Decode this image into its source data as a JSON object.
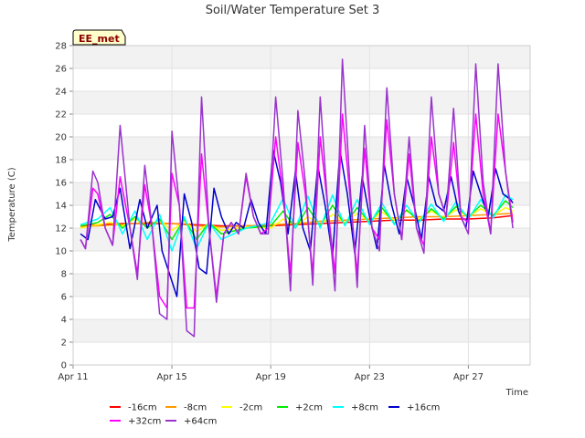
{
  "chart_data": {
    "type": "line",
    "title": "Soil/Water Temperature Set 3",
    "xlabel": "Time",
    "ylabel": "Temperature (C)",
    "badge": "EE_met",
    "xlim": [
      0,
      18.5
    ],
    "ylim": [
      0,
      28
    ],
    "yticks": [
      0,
      2,
      4,
      6,
      8,
      10,
      12,
      14,
      16,
      18,
      20,
      22,
      24,
      26,
      28
    ],
    "xticks": [
      {
        "value": 0,
        "label": "Apr 11"
      },
      {
        "value": 4,
        "label": "Apr 15"
      },
      {
        "value": 8,
        "label": "Apr 19"
      },
      {
        "value": 12,
        "label": "Apr 23"
      },
      {
        "value": 16,
        "label": "Apr 27"
      }
    ],
    "grid": true,
    "legend_position": "bottom",
    "series": [
      {
        "name": "-16cm",
        "color": "#ff0000",
        "x": [
          0.3,
          1,
          2,
          3,
          4,
          5,
          6,
          7,
          8,
          9,
          10,
          11,
          12,
          13,
          14,
          15,
          16,
          17,
          17.8
        ],
        "y": [
          12.2,
          12.3,
          12.4,
          12.4,
          12.4,
          12.3,
          12.2,
          12.2,
          12.2,
          12.3,
          12.4,
          12.5,
          12.6,
          12.7,
          12.7,
          12.8,
          12.8,
          12.9,
          13.1
        ]
      },
      {
        "name": "-8cm",
        "color": "#ff9900",
        "x": [
          0.3,
          1,
          2,
          3,
          4,
          5,
          6,
          7,
          8,
          9,
          10,
          11,
          12,
          13,
          14,
          15,
          16,
          17,
          17.8
        ],
        "y": [
          12.1,
          12.2,
          12.3,
          12.5,
          12.4,
          12.2,
          12.1,
          12.2,
          12.3,
          12.4,
          12.6,
          12.7,
          12.8,
          12.9,
          13.0,
          13.0,
          13.1,
          13.2,
          13.3
        ]
      },
      {
        "name": "-2cm",
        "color": "#ffff00",
        "x": [
          0.3,
          1,
          1.5,
          2,
          2.5,
          3,
          3.5,
          4,
          4.5,
          5,
          5.5,
          6,
          7,
          8,
          8.5,
          9,
          9.5,
          10,
          10.5,
          11,
          11.5,
          12,
          12.5,
          13,
          13.5,
          14,
          14.5,
          15,
          15.5,
          16,
          16.5,
          17,
          17.5,
          17.8
        ],
        "y": [
          12.0,
          12.3,
          12.5,
          12.2,
          12.8,
          12.1,
          12.7,
          11.8,
          12.6,
          11.7,
          12.4,
          11.8,
          12.1,
          12.0,
          12.8,
          12.2,
          13.0,
          12.3,
          13.2,
          12.5,
          13.3,
          12.6,
          13.4,
          12.7,
          13.5,
          12.8,
          13.5,
          12.9,
          13.6,
          13.0,
          13.7,
          13.1,
          13.8,
          13.5
        ]
      },
      {
        "name": "+2cm",
        "color": "#00ee00",
        "x": [
          0.3,
          1,
          1.5,
          2,
          2.5,
          3,
          3.5,
          4,
          4.5,
          5,
          5.5,
          6,
          7,
          8,
          8.5,
          9,
          9.5,
          10,
          10.5,
          11,
          11.5,
          12,
          12.5,
          13,
          13.5,
          14,
          14.5,
          15,
          15.5,
          16,
          16.5,
          17,
          17.5,
          17.8
        ],
        "y": [
          12.2,
          12.5,
          13.2,
          12.0,
          13.0,
          12.0,
          12.8,
          11.0,
          12.8,
          11.0,
          12.5,
          11.5,
          12.0,
          12.2,
          13.5,
          12.0,
          13.8,
          12.2,
          14.0,
          12.3,
          13.8,
          12.5,
          13.8,
          12.4,
          13.6,
          12.6,
          13.7,
          12.8,
          13.9,
          13.0,
          14.0,
          13.1,
          14.4,
          13.8
        ]
      },
      {
        "name": "+8cm",
        "color": "#00ffff",
        "x": [
          0.3,
          1,
          1.5,
          2,
          2.5,
          3,
          3.5,
          4,
          4.5,
          5,
          5.5,
          6,
          7,
          8,
          8.5,
          9,
          9.5,
          10,
          10.5,
          11,
          11.5,
          12,
          12.5,
          13,
          13.5,
          14,
          14.5,
          15,
          15.5,
          16,
          16.5,
          17,
          17.5,
          17.8
        ],
        "y": [
          12.3,
          12.8,
          13.8,
          11.5,
          13.5,
          11.0,
          13.2,
          10.0,
          13.0,
          10.2,
          12.5,
          11.0,
          12.0,
          12.5,
          14.6,
          12.0,
          14.8,
          12.0,
          14.9,
          12.2,
          14.5,
          12.3,
          14.2,
          12.3,
          14.0,
          12.5,
          14.1,
          12.6,
          14.3,
          12.8,
          14.5,
          12.9,
          14.9,
          14.5
        ]
      },
      {
        "name": "+16cm",
        "color": "#0000cc",
        "x": [
          0.3,
          0.6,
          0.9,
          1.3,
          1.6,
          1.9,
          2.3,
          2.7,
          3.0,
          3.4,
          3.6,
          3.9,
          4.2,
          4.5,
          4.8,
          5.1,
          5.4,
          5.7,
          6.0,
          6.3,
          6.6,
          6.9,
          7.2,
          7.5,
          7.8,
          8.1,
          8.4,
          8.7,
          9.0,
          9.3,
          9.6,
          9.9,
          10.2,
          10.5,
          10.8,
          11.1,
          11.4,
          11.7,
          12.0,
          12.3,
          12.6,
          12.9,
          13.2,
          13.5,
          13.8,
          14.1,
          14.4,
          14.7,
          15.0,
          15.3,
          15.6,
          15.9,
          16.2,
          16.5,
          16.8,
          17.1,
          17.4,
          17.7,
          17.8
        ],
        "y": [
          11.5,
          11.0,
          14.5,
          12.8,
          13.0,
          15.5,
          10.2,
          14.5,
          12.0,
          14.0,
          10.0,
          8.0,
          6.0,
          15.0,
          12.5,
          8.5,
          8.0,
          15.5,
          13.0,
          11.5,
          12.5,
          12.0,
          14.5,
          12.5,
          11.5,
          18.8,
          16.0,
          11.5,
          17.0,
          12.0,
          10.0,
          17.5,
          14.0,
          9.5,
          18.8,
          15.0,
          9.8,
          16.5,
          13.0,
          10.2,
          17.5,
          14.0,
          11.5,
          16.5,
          14.0,
          11.0,
          16.5,
          14.0,
          13.5,
          16.5,
          13.5,
          12.0,
          17.0,
          15.0,
          13.0,
          17.2,
          15.0,
          14.5,
          14.2
        ]
      },
      {
        "name": "+32cm",
        "color": "#ff00ff",
        "x": [
          0.3,
          0.5,
          0.8,
          1.0,
          1.3,
          1.6,
          1.9,
          2.3,
          2.6,
          2.9,
          3.2,
          3.5,
          3.8,
          4.0,
          4.3,
          4.6,
          4.9,
          5.2,
          5.5,
          5.8,
          6.1,
          6.4,
          6.7,
          7.0,
          7.3,
          7.6,
          7.9,
          8.2,
          8.5,
          8.8,
          9.1,
          9.4,
          9.7,
          10.0,
          10.3,
          10.6,
          10.9,
          11.2,
          11.5,
          11.8,
          12.1,
          12.4,
          12.7,
          13.0,
          13.3,
          13.6,
          13.9,
          14.2,
          14.5,
          14.8,
          15.1,
          15.4,
          15.7,
          16.0,
          16.3,
          16.6,
          16.9,
          17.2,
          17.5,
          17.8
        ],
        "y": [
          11.0,
          10.2,
          15.5,
          15.0,
          12.0,
          10.5,
          16.5,
          12.0,
          8.0,
          15.8,
          12.0,
          6.0,
          5.0,
          16.8,
          14.0,
          5.0,
          5.0,
          18.5,
          12.0,
          6.0,
          11.5,
          12.5,
          11.5,
          16.5,
          13.0,
          11.5,
          12.0,
          20.0,
          15.0,
          8.0,
          19.5,
          15.0,
          8.0,
          20.0,
          14.0,
          8.0,
          22.0,
          15.0,
          8.0,
          19.0,
          12.0,
          11.0,
          21.5,
          15.0,
          11.0,
          18.5,
          12.0,
          10.5,
          20.0,
          15.0,
          13.0,
          19.5,
          13.0,
          12.5,
          22.0,
          15.0,
          11.5,
          22.0,
          17.0,
          12.5
        ]
      },
      {
        "name": "+64cm",
        "color": "#9933cc",
        "x": [
          0.3,
          0.5,
          0.8,
          1.0,
          1.3,
          1.6,
          1.9,
          2.3,
          2.6,
          2.9,
          3.2,
          3.5,
          3.8,
          4.0,
          4.3,
          4.6,
          4.9,
          5.2,
          5.5,
          5.8,
          6.1,
          6.4,
          6.7,
          7.0,
          7.3,
          7.6,
          7.9,
          8.2,
          8.5,
          8.8,
          9.1,
          9.4,
          9.7,
          10.0,
          10.3,
          10.6,
          10.9,
          11.2,
          11.5,
          11.8,
          12.1,
          12.4,
          12.7,
          13.0,
          13.3,
          13.6,
          13.9,
          14.2,
          14.5,
          14.8,
          15.1,
          15.4,
          15.7,
          16.0,
          16.3,
          16.6,
          16.9,
          17.2,
          17.5,
          17.8
        ],
        "y": [
          11.0,
          10.2,
          17.0,
          16.0,
          12.0,
          10.5,
          21.0,
          12.0,
          7.5,
          17.5,
          12.0,
          4.5,
          4.0,
          20.5,
          14.0,
          3.0,
          2.5,
          23.5,
          12.0,
          5.5,
          11.5,
          12.5,
          11.5,
          16.8,
          13.0,
          11.5,
          11.5,
          23.5,
          16.0,
          6.5,
          22.3,
          16.0,
          7.0,
          23.5,
          14.0,
          6.5,
          26.8,
          16.0,
          6.8,
          21.0,
          12.0,
          10.0,
          24.3,
          15.0,
          11.0,
          20.0,
          12.0,
          9.8,
          23.5,
          15.0,
          13.0,
          22.5,
          13.0,
          11.5,
          26.4,
          16.0,
          11.5,
          26.4,
          17.0,
          12.0
        ]
      }
    ]
  }
}
